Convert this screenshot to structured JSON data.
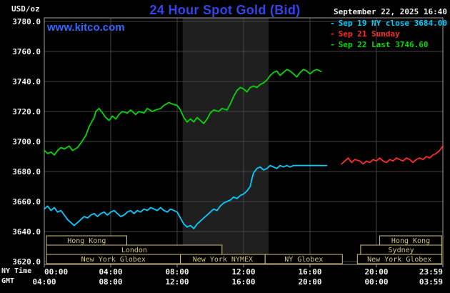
{
  "header": {
    "unit_label": "USD/oz",
    "title": "24 Hour Spot Gold (Bid)",
    "datetime": "September 22, 2025 16:40",
    "watermark": "www.kitco.com"
  },
  "legend": [
    {
      "label": "Sep 19 NY close 3684.00",
      "color": "#00ccff"
    },
    {
      "label": "Sep 21 Sunday",
      "color": "#ff2a2a"
    },
    {
      "label": "Sep 22 Last 3746.60",
      "color": "#00d800"
    }
  ],
  "axes": {
    "ny_label": "NY Time",
    "gmt_label": "GMT",
    "y_ticks": [
      "3780.0",
      "3760.0",
      "3740.0",
      "3720.0",
      "3700.0",
      "3680.0",
      "3660.0",
      "3640.0",
      "3620.0"
    ],
    "x_ticks_ny": [
      "00:00",
      "04:00",
      "08:00",
      "12:00",
      "16:00",
      "20:00",
      "23:59"
    ],
    "x_ticks_gmt": [
      "04:00",
      "08:00",
      "12:00",
      "16:00",
      "20:00",
      "00:00",
      "03:59"
    ]
  },
  "chart_data": {
    "type": "line",
    "title": "24 Hour Spot Gold (Bid)",
    "xlabel": "NY Time / GMT",
    "ylabel": "USD/oz",
    "ylim": [
      3620,
      3780
    ],
    "x_hours_range": [
      0,
      24
    ],
    "grid": true,
    "legend_position": "top-right",
    "y_gridlines": [
      3780,
      3760,
      3740,
      3720,
      3700,
      3680,
      3660,
      3640,
      3620
    ],
    "x_gridlines_hours": [
      4,
      8,
      12,
      16,
      20
    ],
    "x_tick_hours": [
      0,
      4,
      8,
      12,
      16,
      20,
      24
    ],
    "nymex_band_hours": [
      8.33,
      13.5
    ],
    "colors": {
      "background": "#000000",
      "grid": "#444444",
      "border": "#a0a0a0",
      "band": "#1f1f1f",
      "axis_text": "#f0f0f0",
      "session": "#d2c27c",
      "title_blue": "#3344ee",
      "watermark_blue": "#3366ff"
    },
    "sessions": [
      {
        "row": 0,
        "label": "Hong Kong",
        "start": 0.13,
        "end": 4.97
      },
      {
        "row": 0,
        "label": "Hong Kong",
        "start": 20.2,
        "end": 23.93
      },
      {
        "row": 1,
        "label": "London",
        "start": 0.13,
        "end": 10.7
      },
      {
        "row": 1,
        "label": "Sydney",
        "start": 19.05,
        "end": 23.93
      },
      {
        "row": 2,
        "label": "New York Globex",
        "start": 0.13,
        "end": 8.2
      },
      {
        "row": 2,
        "label": "New York NYMEX",
        "start": 8.2,
        "end": 13.3
      },
      {
        "row": 2,
        "label": "NY Globex",
        "start": 13.3,
        "end": 17.95
      },
      {
        "row": 2,
        "label": "New York Globex",
        "start": 18.85,
        "end": 23.93
      }
    ],
    "series": [
      {
        "id": "sep19-ny-close",
        "name": "Sep 19 NY close",
        "color": "#00ccff",
        "close_value": 3684.0,
        "points": [
          [
            0,
            3655
          ],
          [
            0.2,
            3657
          ],
          [
            0.4,
            3654
          ],
          [
            0.6,
            3656
          ],
          [
            0.8,
            3653
          ],
          [
            1,
            3654
          ],
          [
            1.2,
            3651
          ],
          [
            1.4,
            3648
          ],
          [
            1.6,
            3646
          ],
          [
            1.8,
            3644
          ],
          [
            2,
            3646
          ],
          [
            2.2,
            3648
          ],
          [
            2.4,
            3650
          ],
          [
            2.6,
            3649
          ],
          [
            2.8,
            3651
          ],
          [
            3,
            3652
          ],
          [
            3.2,
            3650
          ],
          [
            3.4,
            3652
          ],
          [
            3.6,
            3653
          ],
          [
            3.8,
            3651
          ],
          [
            4,
            3653
          ],
          [
            4.2,
            3654
          ],
          [
            4.4,
            3652
          ],
          [
            4.6,
            3650
          ],
          [
            4.8,
            3651
          ],
          [
            5,
            3653
          ],
          [
            5.2,
            3654
          ],
          [
            5.4,
            3652
          ],
          [
            5.6,
            3654
          ],
          [
            5.8,
            3653
          ],
          [
            6,
            3655
          ],
          [
            6.2,
            3654
          ],
          [
            6.4,
            3656
          ],
          [
            6.6,
            3655
          ],
          [
            6.8,
            3654
          ],
          [
            7,
            3656
          ],
          [
            7.2,
            3654
          ],
          [
            7.4,
            3653
          ],
          [
            7.6,
            3655
          ],
          [
            7.8,
            3654
          ],
          [
            8,
            3653
          ],
          [
            8.2,
            3649
          ],
          [
            8.4,
            3645
          ],
          [
            8.6,
            3643
          ],
          [
            8.8,
            3644
          ],
          [
            9,
            3642
          ],
          [
            9.2,
            3645
          ],
          [
            9.4,
            3647
          ],
          [
            9.6,
            3649
          ],
          [
            9.8,
            3651
          ],
          [
            10,
            3653
          ],
          [
            10.2,
            3655
          ],
          [
            10.4,
            3654
          ],
          [
            10.6,
            3657
          ],
          [
            10.8,
            3659
          ],
          [
            11,
            3660
          ],
          [
            11.2,
            3661
          ],
          [
            11.4,
            3663
          ],
          [
            11.6,
            3662
          ],
          [
            11.8,
            3664
          ],
          [
            12,
            3665
          ],
          [
            12.2,
            3667
          ],
          [
            12.4,
            3670
          ],
          [
            12.5,
            3675
          ],
          [
            12.6,
            3679
          ],
          [
            12.8,
            3682
          ],
          [
            13,
            3683
          ],
          [
            13.2,
            3681
          ],
          [
            13.4,
            3682
          ],
          [
            13.6,
            3684
          ],
          [
            13.8,
            3683
          ],
          [
            14,
            3682
          ],
          [
            14.2,
            3684
          ],
          [
            14.4,
            3683
          ],
          [
            14.6,
            3684
          ],
          [
            14.8,
            3683
          ],
          [
            15,
            3684
          ],
          [
            15.5,
            3684
          ],
          [
            16,
            3684
          ],
          [
            16.5,
            3684
          ],
          [
            17,
            3684
          ]
        ]
      },
      {
        "id": "sep21-sunday",
        "name": "Sep 21 Sunday",
        "color": "#ff2a2a",
        "points": [
          [
            17.9,
            3685
          ],
          [
            18.1,
            3687
          ],
          [
            18.3,
            3689
          ],
          [
            18.5,
            3686
          ],
          [
            18.7,
            3688
          ],
          [
            19,
            3687
          ],
          [
            19.2,
            3685
          ],
          [
            19.4,
            3687
          ],
          [
            19.6,
            3686
          ],
          [
            19.8,
            3688
          ],
          [
            20,
            3687
          ],
          [
            20.2,
            3689
          ],
          [
            20.4,
            3687
          ],
          [
            20.6,
            3686
          ],
          [
            20.8,
            3688
          ],
          [
            21,
            3687
          ],
          [
            21.2,
            3689
          ],
          [
            21.4,
            3688
          ],
          [
            21.6,
            3687
          ],
          [
            21.8,
            3689
          ],
          [
            22,
            3688
          ],
          [
            22.2,
            3686
          ],
          [
            22.4,
            3688
          ],
          [
            22.6,
            3689
          ],
          [
            22.8,
            3688
          ],
          [
            23,
            3690
          ],
          [
            23.2,
            3689
          ],
          [
            23.4,
            3691
          ],
          [
            23.6,
            3692
          ],
          [
            23.8,
            3694
          ],
          [
            24,
            3697
          ]
        ]
      },
      {
        "id": "sep22-last",
        "name": "Sep 22",
        "color": "#00d800",
        "last_value": 3746.6,
        "points": [
          [
            0,
            3694
          ],
          [
            0.2,
            3692
          ],
          [
            0.4,
            3693
          ],
          [
            0.6,
            3691
          ],
          [
            0.8,
            3694
          ],
          [
            1,
            3696
          ],
          [
            1.2,
            3695
          ],
          [
            1.5,
            3697
          ],
          [
            1.7,
            3694
          ],
          [
            2,
            3696
          ],
          [
            2.2,
            3699
          ],
          [
            2.5,
            3704
          ],
          [
            2.7,
            3710
          ],
          [
            3,
            3716
          ],
          [
            3.1,
            3720
          ],
          [
            3.3,
            3722
          ],
          [
            3.5,
            3719
          ],
          [
            3.7,
            3716
          ],
          [
            3.9,
            3714
          ],
          [
            4.1,
            3717
          ],
          [
            4.3,
            3715
          ],
          [
            4.5,
            3718
          ],
          [
            4.7,
            3720
          ],
          [
            5,
            3719
          ],
          [
            5.2,
            3721
          ],
          [
            5.5,
            3718
          ],
          [
            5.7,
            3720
          ],
          [
            6,
            3719
          ],
          [
            6.2,
            3722
          ],
          [
            6.5,
            3720
          ],
          [
            6.7,
            3721
          ],
          [
            7,
            3722
          ],
          [
            7.2,
            3724
          ],
          [
            7.5,
            3726
          ],
          [
            7.7,
            3725
          ],
          [
            8,
            3724
          ],
          [
            8.2,
            3721
          ],
          [
            8.4,
            3716
          ],
          [
            8.6,
            3713
          ],
          [
            8.8,
            3715
          ],
          [
            9,
            3713
          ],
          [
            9.2,
            3716
          ],
          [
            9.4,
            3714
          ],
          [
            9.6,
            3712
          ],
          [
            9.8,
            3715
          ],
          [
            10,
            3719
          ],
          [
            10.2,
            3721
          ],
          [
            10.5,
            3720
          ],
          [
            10.7,
            3722
          ],
          [
            11,
            3721
          ],
          [
            11.2,
            3725
          ],
          [
            11.4,
            3730
          ],
          [
            11.6,
            3734
          ],
          [
            11.8,
            3736
          ],
          [
            12,
            3735
          ],
          [
            12.2,
            3733
          ],
          [
            12.4,
            3736
          ],
          [
            12.6,
            3737
          ],
          [
            12.8,
            3736
          ],
          [
            13,
            3738
          ],
          [
            13.2,
            3739
          ],
          [
            13.4,
            3741
          ],
          [
            13.6,
            3744
          ],
          [
            13.8,
            3746
          ],
          [
            14,
            3747
          ],
          [
            14.2,
            3744
          ],
          [
            14.4,
            3746
          ],
          [
            14.6,
            3748
          ],
          [
            14.8,
            3747
          ],
          [
            15,
            3745
          ],
          [
            15.2,
            3743
          ],
          [
            15.4,
            3746
          ],
          [
            15.6,
            3748
          ],
          [
            15.8,
            3747
          ],
          [
            16,
            3745
          ],
          [
            16.2,
            3747
          ],
          [
            16.4,
            3748
          ],
          [
            16.67,
            3746.6
          ]
        ]
      }
    ]
  }
}
